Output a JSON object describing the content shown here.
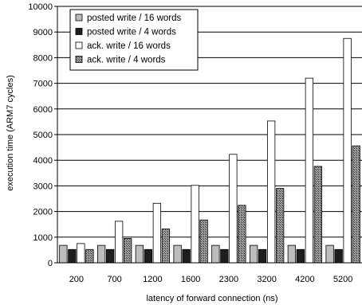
{
  "chart_data": {
    "type": "bar",
    "title": "",
    "xlabel": "latency of forward connection (ns)",
    "ylabel": "execution time (ARM7 cycles)",
    "ylim": [
      0,
      10000
    ],
    "yticks": [
      0,
      1000,
      2000,
      3000,
      4000,
      5000,
      6000,
      7000,
      8000,
      9000,
      10000
    ],
    "grid": true,
    "legend_position": "top-left",
    "categories": [
      "200",
      "700",
      "1200",
      "1600",
      "2300",
      "3200",
      "4200",
      "5200"
    ],
    "series": [
      {
        "name": "posted write / 16 words",
        "fill": "#bdbdbd",
        "pattern": "solid",
        "values": [
          680,
          680,
          680,
          680,
          680,
          680,
          680,
          680
        ]
      },
      {
        "name": "posted write / 4 words",
        "fill": "#1e1e1e",
        "pattern": "solid",
        "values": [
          520,
          520,
          520,
          520,
          520,
          520,
          520,
          520
        ]
      },
      {
        "name": "ack. write / 16 words",
        "fill": "#ffffff",
        "pattern": "solid",
        "values": [
          750,
          1620,
          2320,
          3020,
          4230,
          5530,
          7200,
          8750
        ]
      },
      {
        "name": "ack. write / 4 words",
        "fill": "#808080",
        "pattern": "crosshatch",
        "values": [
          520,
          950,
          1320,
          1670,
          2240,
          2900,
          3760,
          4560
        ]
      }
    ]
  }
}
